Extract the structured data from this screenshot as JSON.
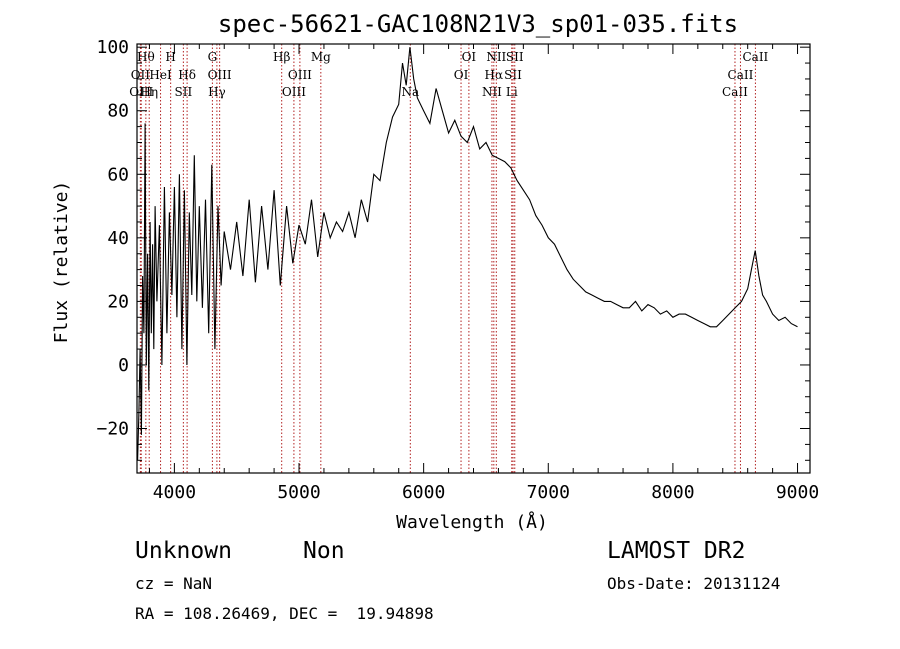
{
  "chart_data": {
    "type": "line",
    "title": "spec-56621-GAC108N21V3_sp01-035.fits",
    "xlabel": "Wavelength (Å)",
    "ylabel": "Flux (relative)",
    "xlim": [
      3700,
      9100
    ],
    "ylim": [
      -34,
      101
    ],
    "xticks": [
      4000,
      5000,
      6000,
      7000,
      8000,
      9000
    ],
    "yticks": [
      -20,
      0,
      20,
      40,
      60,
      80,
      100
    ],
    "ytick_labels": [
      "−20",
      "0",
      "20",
      "40",
      "60",
      "80",
      "100"
    ],
    "grid": false,
    "line_color": "#000000",
    "marker_color": "#b22222",
    "series": [
      {
        "x": [
          3705,
          3715,
          3725,
          3735,
          3745,
          3755,
          3765,
          3775,
          3785,
          3795,
          3805,
          3815,
          3825,
          3835,
          3845,
          3860,
          3880,
          3900,
          3920,
          3940,
          3960,
          3980,
          4000,
          4020,
          4040,
          4060,
          4080,
          4100,
          4120,
          4140,
          4160,
          4180,
          4200,
          4225,
          4250,
          4275,
          4300,
          4325,
          4350,
          4375,
          4400,
          4450,
          4500,
          4550,
          4600,
          4650,
          4700,
          4750,
          4800,
          4850,
          4900,
          4950,
          5000,
          5050,
          5100,
          5150,
          5200,
          5250,
          5300,
          5350,
          5400,
          5450,
          5500,
          5550,
          5600,
          5650,
          5700,
          5750,
          5800,
          5830,
          5860,
          5890,
          5920,
          5950,
          6000,
          6050,
          6100,
          6150,
          6200,
          6250,
          6300,
          6350,
          6400,
          6450,
          6500,
          6550,
          6600,
          6650,
          6700,
          6750,
          6800,
          6850,
          6900,
          6950,
          7000,
          7050,
          7100,
          7150,
          7200,
          7250,
          7300,
          7350,
          7400,
          7450,
          7500,
          7550,
          7600,
          7650,
          7700,
          7750,
          7800,
          7850,
          7900,
          7950,
          8000,
          8050,
          8100,
          8150,
          8200,
          8250,
          8300,
          8350,
          8400,
          8450,
          8500,
          8550,
          8600,
          8630,
          8660,
          8690,
          8720,
          8750,
          8800,
          8850,
          8900,
          8950,
          9000
        ],
        "y": [
          -30,
          -15,
          5,
          -22,
          28,
          10,
          76,
          0,
          35,
          -8,
          45,
          10,
          38,
          5,
          50,
          20,
          44,
          0,
          56,
          10,
          48,
          22,
          56,
          15,
          60,
          5,
          55,
          0,
          48,
          22,
          66,
          20,
          50,
          18,
          52,
          10,
          63,
          5,
          50,
          25,
          42,
          30,
          45,
          28,
          52,
          26,
          50,
          30,
          55,
          25,
          50,
          32,
          44,
          38,
          52,
          34,
          48,
          40,
          45,
          42,
          48,
          40,
          52,
          45,
          60,
          58,
          70,
          78,
          82,
          95,
          88,
          100,
          90,
          84,
          80,
          76,
          87,
          80,
          73,
          77,
          72,
          70,
          75,
          68,
          70,
          66,
          65,
          64,
          62,
          58,
          55,
          52,
          47,
          44,
          40,
          38,
          34,
          30,
          27,
          25,
          23,
          22,
          21,
          20,
          20,
          19,
          18,
          18,
          20,
          17,
          19,
          18,
          16,
          17,
          15,
          16,
          16,
          15,
          14,
          13,
          12,
          12,
          14,
          16,
          18,
          20,
          24,
          30,
          36,
          28,
          22,
          20,
          16,
          14,
          15,
          13,
          12
        ]
      }
    ],
    "line_markers": [
      {
        "x": 3727,
        "labels": [
          "OII"
        ],
        "row": 1
      },
      {
        "x": 3734,
        "labels": [
          "OIII"
        ],
        "row": 2
      },
      {
        "x": 3771,
        "labels": [
          "Hθ"
        ],
        "row": 0
      },
      {
        "x": 3798,
        "labels": [
          "Hη"
        ],
        "row": 2
      },
      {
        "x": 3889,
        "labels": [
          "HeI"
        ],
        "row": 1
      },
      {
        "x": 3970,
        "labels": [
          "H"
        ],
        "row": 0
      },
      {
        "x": 4102,
        "labels": [
          "Hδ"
        ],
        "row": 1
      },
      {
        "x": 4072,
        "labels": [
          "SII"
        ],
        "row": 2
      },
      {
        "x": 4305,
        "labels": [
          "G"
        ],
        "row": 0
      },
      {
        "x": 4341,
        "labels": [
          "Hγ"
        ],
        "row": 2
      },
      {
        "x": 4363,
        "labels": [
          "OIII"
        ],
        "row": 1
      },
      {
        "x": 4861,
        "labels": [
          "Hβ"
        ],
        "row": 0
      },
      {
        "x": 4959,
        "labels": [
          "OIII"
        ],
        "row": 2
      },
      {
        "x": 5007,
        "labels": [
          "OIII"
        ],
        "row": 1
      },
      {
        "x": 5175,
        "labels": [
          "Mg"
        ],
        "row": 0
      },
      {
        "x": 5893,
        "labels": [
          "Na"
        ],
        "row": 2
      },
      {
        "x": 6300,
        "labels": [
          "OI"
        ],
        "row": 1
      },
      {
        "x": 6363,
        "labels": [
          "OI"
        ],
        "row": 0
      },
      {
        "x": 6548,
        "labels": [
          "NII"
        ],
        "row": 2
      },
      {
        "x": 6563,
        "labels": [
          "Hα"
        ],
        "row": 1
      },
      {
        "x": 6583,
        "labels": [
          "NII"
        ],
        "row": 0
      },
      {
        "x": 6707,
        "labels": [
          "Li"
        ],
        "row": 2
      },
      {
        "x": 6717,
        "labels": [
          "SII"
        ],
        "row": 1
      },
      {
        "x": 6731,
        "labels": [
          "SII"
        ],
        "row": 0
      },
      {
        "x": 8498,
        "labels": [
          "CaII"
        ],
        "row": 2
      },
      {
        "x": 8542,
        "labels": [
          "CaII"
        ],
        "row": 1
      },
      {
        "x": 8662,
        "labels": [
          "CaII"
        ],
        "row": 0
      }
    ]
  },
  "info": {
    "class": "Unknown",
    "subclass": "Non",
    "survey": "LAMOST DR2",
    "cz": "cz = NaN",
    "obs_date": "Obs-Date: 20131124",
    "coords": "RA = 108.26469, DEC =  19.94898"
  }
}
